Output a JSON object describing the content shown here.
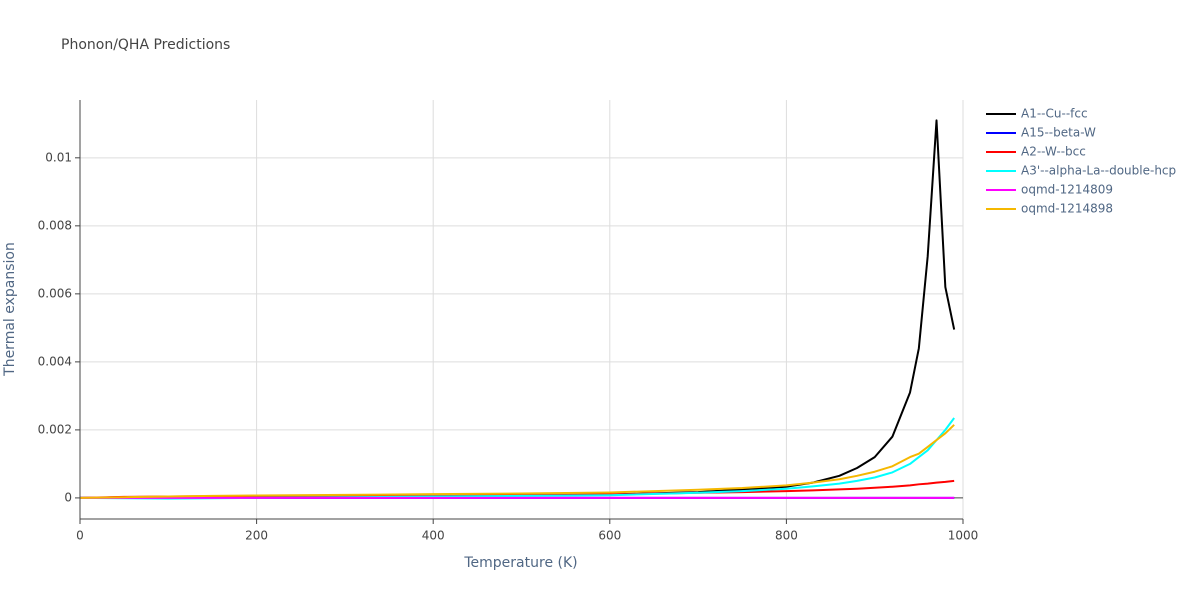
{
  "chart_data": {
    "type": "line",
    "title": "Phonon/QHA Predictions",
    "x_label": "Temperature (K)",
    "y_label": "Thermal expansion",
    "x": [
      0,
      50,
      100,
      150,
      200,
      300,
      400,
      500,
      600,
      700,
      750,
      800,
      830,
      860,
      880,
      900,
      920,
      940,
      950,
      960,
      970,
      980,
      990
    ],
    "series": [
      {
        "name": "A1--Cu--fcc",
        "color": "#000000",
        "values": [
          0,
          2e-05,
          3e-05,
          4e-05,
          5e-05,
          6e-05,
          7e-05,
          8e-05,
          0.0001,
          0.00017,
          0.00025,
          0.00033,
          0.00045,
          0.00065,
          0.00088,
          0.0012,
          0.0018,
          0.0031,
          0.0044,
          0.0071,
          0.0111,
          0.0062,
          0.00495
        ]
      },
      {
        "name": "A15--beta-W",
        "color": "#0000ff",
        "values": [
          0,
          0,
          0,
          0,
          0,
          0,
          0,
          0,
          0,
          0,
          0,
          0,
          0,
          0,
          0,
          0,
          0,
          0,
          0,
          0,
          0,
          0,
          0
        ]
      },
      {
        "name": "A2--W--bcc",
        "color": "#ff0000",
        "values": [
          0,
          3e-05,
          4e-05,
          5e-05,
          6e-05,
          7e-05,
          8e-05,
          9e-05,
          0.0001,
          0.00015,
          0.00017,
          0.0002,
          0.00022,
          0.00025,
          0.00027,
          0.0003,
          0.00033,
          0.00037,
          0.0004,
          0.00042,
          0.00045,
          0.00047,
          0.0005
        ]
      },
      {
        "name": "A3'--alpha-La--double-hcp",
        "color": "#00ffff",
        "values": [
          0,
          -1e-05,
          -2e-05,
          -1e-05,
          0,
          2e-05,
          4e-05,
          6e-05,
          8e-05,
          0.00015,
          0.0002,
          0.00027,
          0.00034,
          0.00042,
          0.0005,
          0.0006,
          0.00075,
          0.001,
          0.0012,
          0.0014,
          0.0017,
          0.002,
          0.00235
        ]
      },
      {
        "name": "oqmd-1214809",
        "color": "#ff00ff",
        "values": [
          0,
          0,
          0,
          0,
          0,
          0,
          0,
          0,
          0,
          0,
          0,
          0,
          0,
          0,
          0,
          0,
          0,
          0,
          0,
          0,
          0,
          0,
          0
        ]
      },
      {
        "name": "oqmd-1214898",
        "color": "#f5b800",
        "values": [
          0,
          2e-05,
          4e-05,
          6e-05,
          7e-05,
          9e-05,
          0.00011,
          0.00013,
          0.00016,
          0.00024,
          0.00029,
          0.00037,
          0.00045,
          0.00055,
          0.00065,
          0.00077,
          0.00093,
          0.0012,
          0.0013,
          0.0015,
          0.0017,
          0.0019,
          0.00215
        ]
      }
    ],
    "xlim": [
      0,
      1000
    ],
    "xticks": [
      0,
      200,
      400,
      600,
      800,
      1000
    ],
    "ylim": [
      -0.00062,
      0.0117
    ],
    "yticks": [
      0,
      0.002,
      0.004,
      0.006,
      0.008,
      0.01
    ],
    "grid": true
  }
}
